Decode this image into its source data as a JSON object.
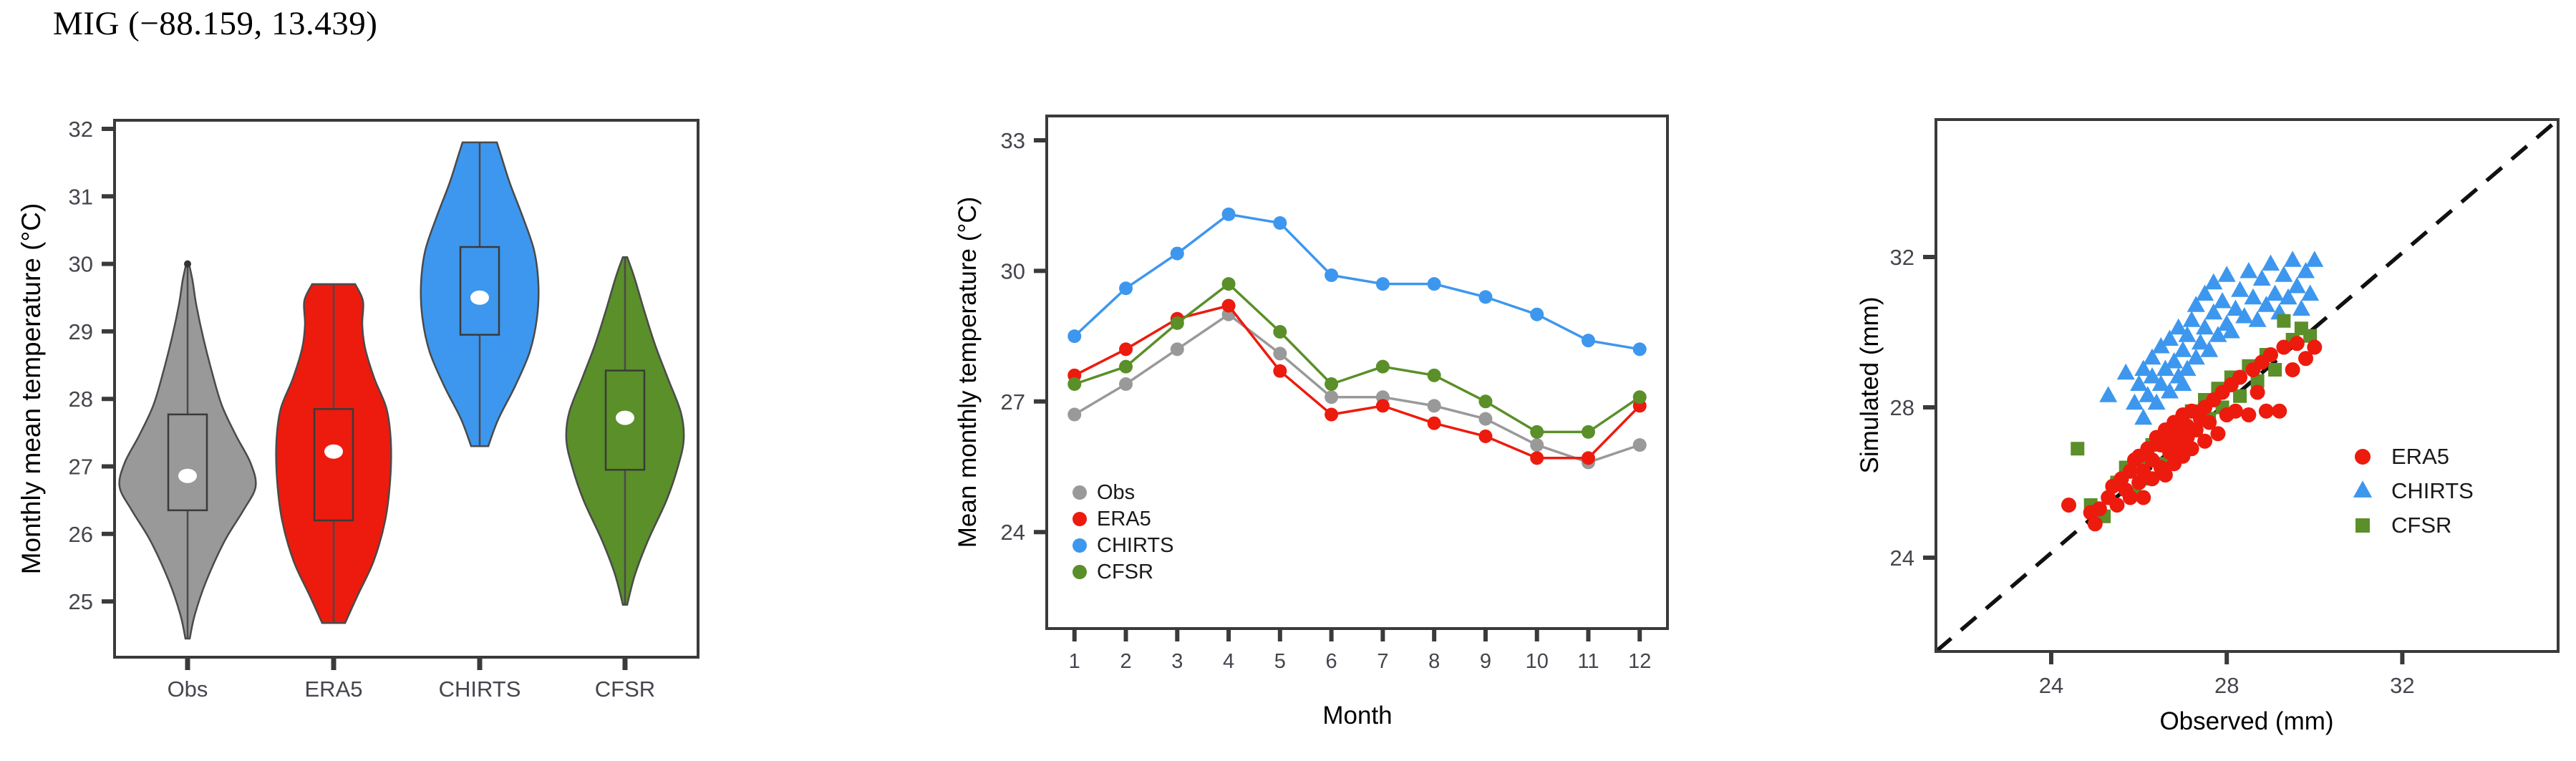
{
  "title": "MIG (−88.159, 13.439)",
  "colors": {
    "obs": "#999999",
    "era5": "#ec1b0e",
    "chirts": "#3d97ee",
    "cfsr": "#5a8f29",
    "axis": "#3a3a3a",
    "tick_text": "#45454d",
    "violin_outline": "#4a4a4a",
    "identity_line": "#111111",
    "median_dot": "#ffffff"
  },
  "chart_data": [
    {
      "type": "violin",
      "ylabel": "Monthly mean temperature (°C)",
      "ylim": [
        24.2,
        32.1
      ],
      "yticks": [
        25,
        26,
        27,
        28,
        29,
        30,
        31,
        32
      ],
      "categories": [
        "Obs",
        "ERA5",
        "CHIRTS",
        "CFSR"
      ],
      "violins": [
        {
          "name": "Obs",
          "color_key": "obs",
          "min": 24.45,
          "q1": 26.35,
          "median": 26.86,
          "q3": 27.77,
          "max": 30.0,
          "cap_dot": 30.0,
          "profile": [
            [
              24.45,
              3
            ],
            [
              24.8,
              10
            ],
            [
              25.3,
              26
            ],
            [
              25.9,
              52
            ],
            [
              26.35,
              78
            ],
            [
              26.7,
              95
            ],
            [
              27.05,
              88
            ],
            [
              27.45,
              68
            ],
            [
              27.9,
              48
            ],
            [
              28.4,
              34
            ],
            [
              28.9,
              22
            ],
            [
              29.4,
              12
            ],
            [
              29.75,
              7
            ],
            [
              30.0,
              2
            ]
          ]
        },
        {
          "name": "ERA5",
          "color_key": "era5",
          "min": 24.68,
          "q1": 26.2,
          "median": 27.22,
          "q3": 27.85,
          "max": 29.7,
          "profile": [
            [
              24.68,
              16
            ],
            [
              25.1,
              34
            ],
            [
              25.6,
              56
            ],
            [
              26.2,
              72
            ],
            [
              26.8,
              79
            ],
            [
              27.35,
              80
            ],
            [
              27.85,
              74
            ],
            [
              28.3,
              57
            ],
            [
              28.75,
              44
            ],
            [
              29.1,
              40
            ],
            [
              29.45,
              41
            ],
            [
              29.7,
              30
            ]
          ]
        },
        {
          "name": "CHIRTS",
          "color_key": "chirts",
          "min": 27.3,
          "q1": 28.95,
          "median": 29.5,
          "q3": 30.25,
          "max": 31.8,
          "profile": [
            [
              27.3,
              12
            ],
            [
              27.7,
              26
            ],
            [
              28.2,
              50
            ],
            [
              28.7,
              70
            ],
            [
              29.2,
              80
            ],
            [
              29.7,
              82
            ],
            [
              30.2,
              76
            ],
            [
              30.7,
              60
            ],
            [
              31.2,
              42
            ],
            [
              31.6,
              30
            ],
            [
              31.8,
              24
            ]
          ]
        },
        {
          "name": "CFSR",
          "color_key": "cfsr",
          "min": 24.95,
          "q1": 26.95,
          "median": 27.72,
          "q3": 28.42,
          "max": 30.1,
          "profile": [
            [
              24.95,
              3
            ],
            [
              25.4,
              14
            ],
            [
              25.9,
              32
            ],
            [
              26.5,
              58
            ],
            [
              27.0,
              74
            ],
            [
              27.4,
              82
            ],
            [
              27.8,
              78
            ],
            [
              28.3,
              60
            ],
            [
              28.8,
              42
            ],
            [
              29.3,
              27
            ],
            [
              29.8,
              13
            ],
            [
              30.1,
              3
            ]
          ]
        }
      ]
    },
    {
      "type": "line",
      "xlabel": "Month",
      "ylabel": "Mean monthly temperature (°C)",
      "x": [
        1,
        2,
        3,
        4,
        5,
        6,
        7,
        8,
        9,
        10,
        11,
        12
      ],
      "yticks": [
        24,
        27,
        30,
        33
      ],
      "ylim": [
        21.8,
        33.6
      ],
      "legend": [
        "Obs",
        "ERA5",
        "CHIRTS",
        "CFSR"
      ],
      "series": [
        {
          "name": "Obs",
          "color_key": "obs",
          "values": [
            26.7,
            27.4,
            28.2,
            29.0,
            28.1,
            27.1,
            27.1,
            26.9,
            26.6,
            26.0,
            25.6,
            26.0
          ]
        },
        {
          "name": "ERA5",
          "color_key": "era5",
          "values": [
            27.6,
            28.2,
            28.9,
            29.2,
            27.7,
            26.7,
            26.9,
            26.5,
            26.2,
            25.7,
            25.7,
            26.9
          ]
        },
        {
          "name": "CHIRTS",
          "color_key": "chirts",
          "values": [
            28.5,
            29.6,
            30.4,
            31.3,
            31.1,
            29.9,
            29.7,
            29.7,
            29.4,
            29.0,
            28.4,
            28.2
          ]
        },
        {
          "name": "CFSR",
          "color_key": "cfsr",
          "values": [
            27.4,
            27.8,
            28.8,
            29.7,
            28.6,
            27.4,
            27.8,
            27.6,
            27.0,
            26.3,
            26.3,
            27.1
          ]
        }
      ]
    },
    {
      "type": "scatter",
      "xlabel": "Observed (mm)",
      "ylabel": "Simulated (mm)",
      "xticks": [
        24,
        28,
        32
      ],
      "yticks": [
        24,
        28,
        32
      ],
      "xlim": [
        21.4,
        35.6
      ],
      "ylim": [
        21.4,
        35.7
      ],
      "identity_line": true,
      "legend": [
        "ERA5",
        "CHIRTS",
        "CFSR"
      ],
      "series": [
        {
          "name": "ERA5",
          "color_key": "era5",
          "marker": "circle",
          "points": [
            [
              24.4,
              25.4
            ],
            [
              24.9,
              25.2
            ],
            [
              25.0,
              24.9
            ],
            [
              25.1,
              25.3
            ],
            [
              25.3,
              25.6
            ],
            [
              25.4,
              25.9
            ],
            [
              25.5,
              25.4
            ],
            [
              25.6,
              26.1
            ],
            [
              25.7,
              25.8
            ],
            [
              25.8,
              26.3
            ],
            [
              25.8,
              25.6
            ],
            [
              25.9,
              26.6
            ],
            [
              26.0,
              26.0
            ],
            [
              26.0,
              26.7
            ],
            [
              26.1,
              25.6
            ],
            [
              26.1,
              26.3
            ],
            [
              26.2,
              26.9
            ],
            [
              26.3,
              26.1
            ],
            [
              26.3,
              26.6
            ],
            [
              26.4,
              27.2
            ],
            [
              26.5,
              26.4
            ],
            [
              26.5,
              27.0
            ],
            [
              26.6,
              26.2
            ],
            [
              26.6,
              27.4
            ],
            [
              26.7,
              26.8
            ],
            [
              26.7,
              27.1
            ],
            [
              26.8,
              26.5
            ],
            [
              26.8,
              27.6
            ],
            [
              26.9,
              27.0
            ],
            [
              26.9,
              27.3
            ],
            [
              27.0,
              26.7
            ],
            [
              27.0,
              27.8
            ],
            [
              27.1,
              27.2
            ],
            [
              27.1,
              27.5
            ],
            [
              27.2,
              26.9
            ],
            [
              27.2,
              27.9
            ],
            [
              27.3,
              27.4
            ],
            [
              27.4,
              27.7
            ],
            [
              27.5,
              27.1
            ],
            [
              27.5,
              28.0
            ],
            [
              27.6,
              27.6
            ],
            [
              27.7,
              28.2
            ],
            [
              27.8,
              27.3
            ],
            [
              27.9,
              28.4
            ],
            [
              28.0,
              27.8
            ],
            [
              28.1,
              28.6
            ],
            [
              28.2,
              27.9
            ],
            [
              28.3,
              28.8
            ],
            [
              28.5,
              27.8
            ],
            [
              28.6,
              29.0
            ],
            [
              28.7,
              28.4
            ],
            [
              28.8,
              29.2
            ],
            [
              28.9,
              27.9
            ],
            [
              29.0,
              29.4
            ],
            [
              29.2,
              27.9
            ],
            [
              29.3,
              29.6
            ],
            [
              29.5,
              29.0
            ],
            [
              29.6,
              29.7
            ],
            [
              29.8,
              29.3
            ],
            [
              30.0,
              29.6
            ]
          ]
        },
        {
          "name": "CHIRTS",
          "color_key": "chirts",
          "marker": "triangle",
          "points": [
            [
              25.3,
              28.3
            ],
            [
              25.7,
              28.9
            ],
            [
              25.9,
              28.1
            ],
            [
              26.0,
              28.6
            ],
            [
              26.1,
              27.7
            ],
            [
              26.1,
              29.0
            ],
            [
              26.2,
              28.3
            ],
            [
              26.3,
              28.8
            ],
            [
              26.3,
              29.3
            ],
            [
              26.4,
              28.1
            ],
            [
              26.5,
              28.6
            ],
            [
              26.5,
              29.6
            ],
            [
              26.6,
              29.0
            ],
            [
              26.7,
              28.4
            ],
            [
              26.7,
              29.8
            ],
            [
              26.8,
              29.2
            ],
            [
              26.9,
              28.8
            ],
            [
              26.9,
              30.1
            ],
            [
              27.0,
              29.5
            ],
            [
              27.0,
              28.6
            ],
            [
              27.1,
              29.9
            ],
            [
              27.1,
              29.0
            ],
            [
              27.2,
              30.3
            ],
            [
              27.3,
              29.3
            ],
            [
              27.3,
              30.7
            ],
            [
              27.4,
              29.7
            ],
            [
              27.5,
              30.1
            ],
            [
              27.5,
              31.0
            ],
            [
              27.6,
              29.5
            ],
            [
              27.7,
              30.5
            ],
            [
              27.7,
              31.3
            ],
            [
              27.8,
              29.9
            ],
            [
              27.9,
              30.8
            ],
            [
              28.0,
              30.2
            ],
            [
              28.0,
              31.5
            ],
            [
              28.1,
              30.0
            ],
            [
              28.2,
              30.6
            ],
            [
              28.3,
              31.1
            ],
            [
              28.4,
              30.4
            ],
            [
              28.5,
              31.6
            ],
            [
              28.6,
              30.9
            ],
            [
              28.7,
              30.3
            ],
            [
              28.8,
              31.4
            ],
            [
              28.9,
              30.7
            ],
            [
              29.0,
              31.8
            ],
            [
              29.1,
              31.0
            ],
            [
              29.2,
              30.5
            ],
            [
              29.3,
              31.5
            ],
            [
              29.4,
              30.9
            ],
            [
              29.5,
              31.9
            ],
            [
              29.6,
              31.2
            ],
            [
              29.7,
              30.6
            ],
            [
              29.8,
              31.6
            ],
            [
              29.9,
              31.0
            ],
            [
              30.0,
              31.9
            ]
          ]
        },
        {
          "name": "CFSR",
          "color_key": "cfsr",
          "marker": "square",
          "points": [
            [
              24.6,
              26.9
            ],
            [
              24.9,
              25.4
            ],
            [
              25.2,
              25.1
            ],
            [
              25.5,
              26.0
            ],
            [
              25.7,
              26.4
            ],
            [
              25.9,
              25.7
            ],
            [
              26.0,
              26.6
            ],
            [
              26.2,
              26.1
            ],
            [
              26.3,
              27.0
            ],
            [
              26.5,
              26.5
            ],
            [
              26.6,
              27.3
            ],
            [
              26.8,
              26.8
            ],
            [
              26.9,
              27.6
            ],
            [
              27.0,
              27.1
            ],
            [
              27.2,
              27.9
            ],
            [
              27.3,
              27.4
            ],
            [
              27.5,
              28.2
            ],
            [
              27.6,
              27.7
            ],
            [
              27.8,
              28.5
            ],
            [
              27.9,
              28.0
            ],
            [
              28.1,
              28.8
            ],
            [
              28.3,
              28.3
            ],
            [
              28.5,
              29.1
            ],
            [
              28.7,
              28.7
            ],
            [
              28.9,
              29.4
            ],
            [
              29.1,
              29.0
            ],
            [
              29.3,
              30.3
            ],
            [
              29.5,
              29.8
            ],
            [
              29.7,
              30.1
            ],
            [
              29.9,
              29.9
            ]
          ]
        }
      ]
    }
  ]
}
